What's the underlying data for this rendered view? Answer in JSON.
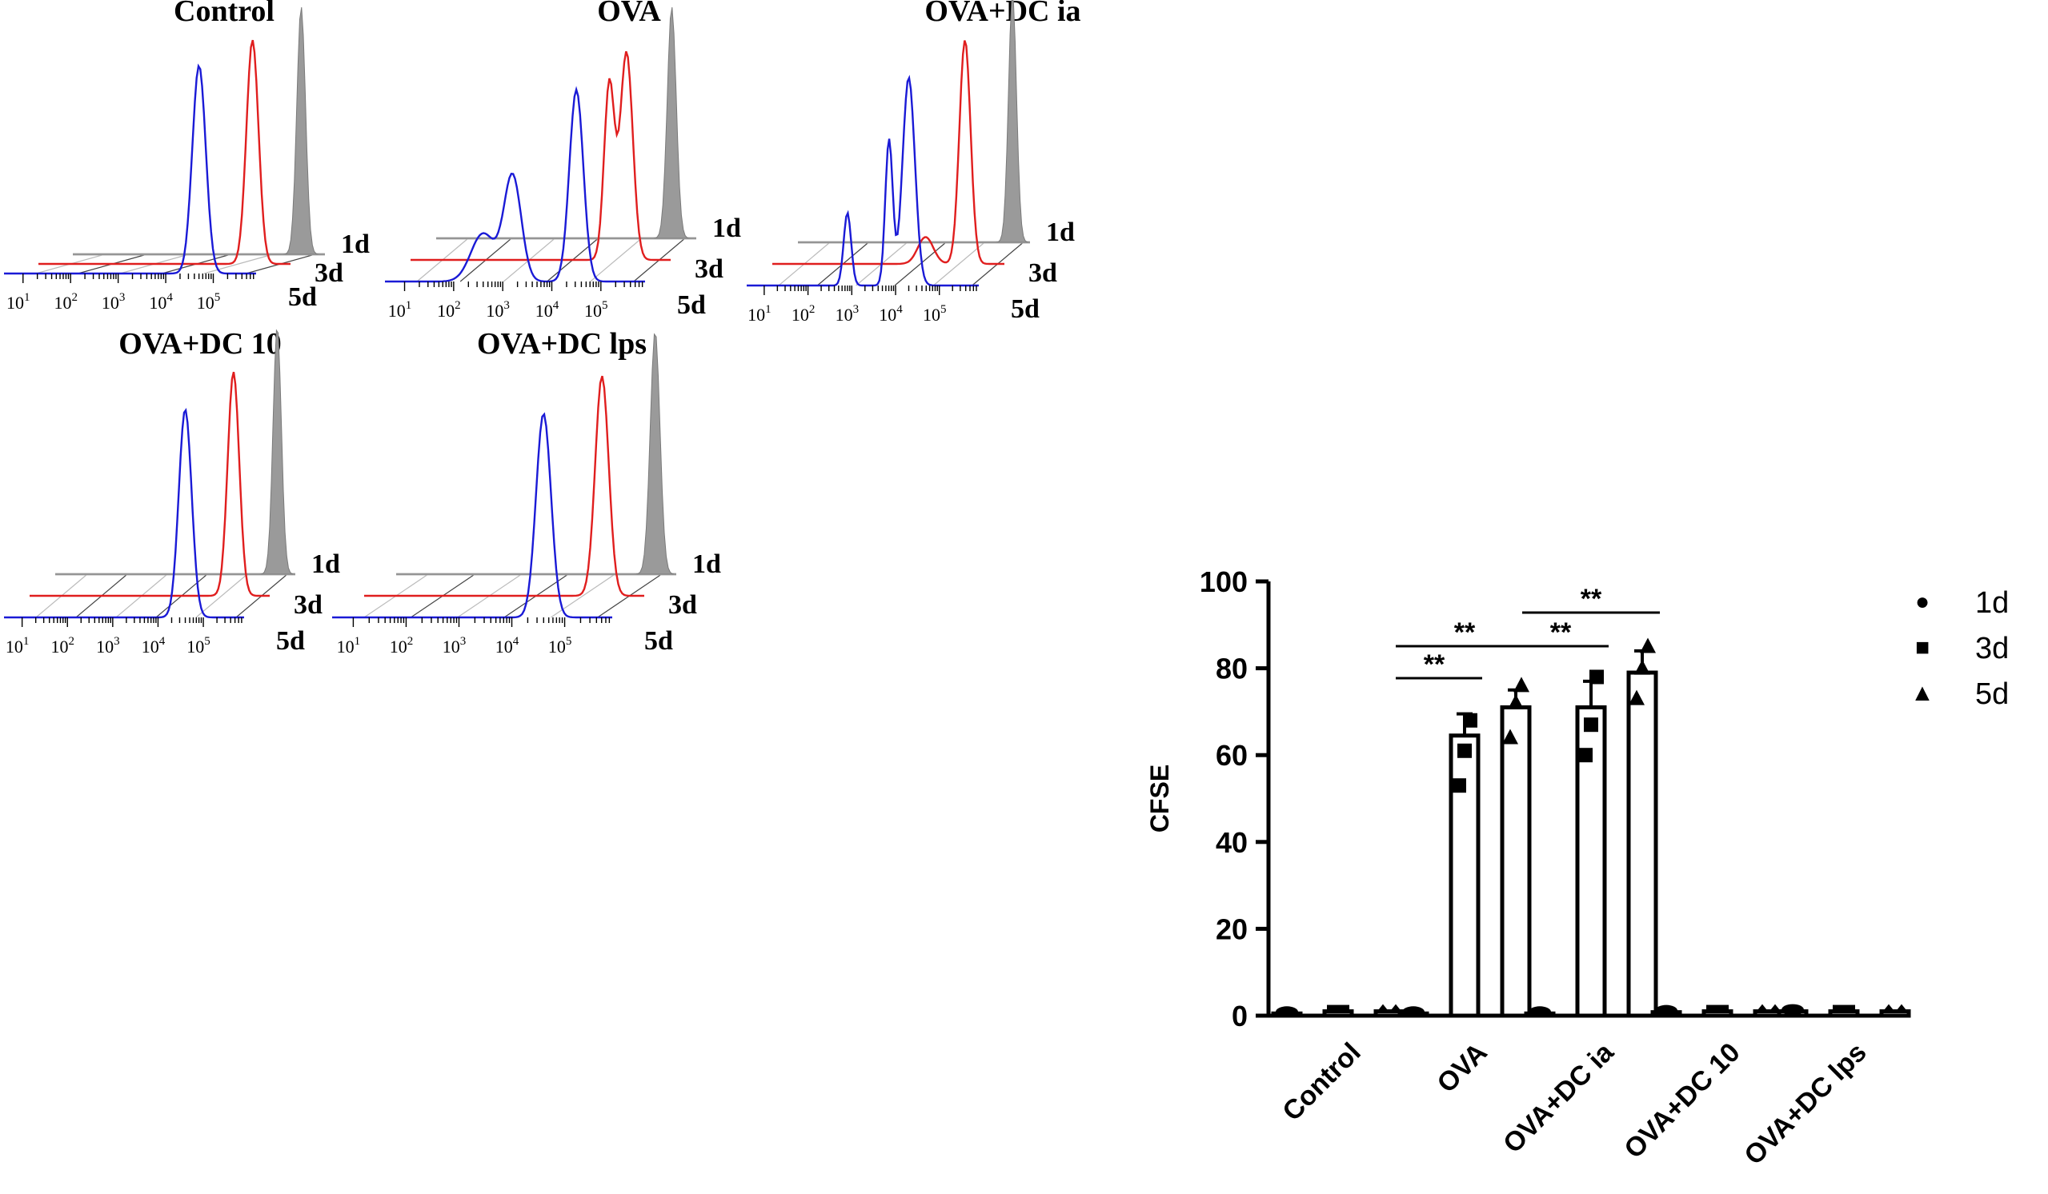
{
  "chart_data": [
    {
      "type": "histogram",
      "title": "Control",
      "day_labels": [
        "1d",
        "3d",
        "5d"
      ],
      "x_tick_labels": [
        {
          "base": "10",
          "exp": "1"
        },
        {
          "base": "10",
          "exp": "2"
        },
        {
          "base": "10",
          "exp": "3"
        },
        {
          "base": "10",
          "exp": "4"
        },
        {
          "base": "10",
          "exp": "5"
        }
      ],
      "peaks": [
        {
          "day": "1d",
          "log10_center": 5.4
        },
        {
          "day": "3d",
          "log10_center": 5.1
        },
        {
          "day": "5d",
          "log10_center": 4.7
        }
      ]
    },
    {
      "type": "histogram",
      "title": "OVA",
      "day_labels": [
        "1d",
        "3d",
        "5d"
      ],
      "x_tick_labels": [
        {
          "base": "10",
          "exp": "1"
        },
        {
          "base": "10",
          "exp": "2"
        },
        {
          "base": "10",
          "exp": "3"
        },
        {
          "base": "10",
          "exp": "4"
        },
        {
          "base": "10",
          "exp": "5"
        }
      ],
      "peaks": [
        {
          "day": "1d",
          "log10_center": 5.4
        },
        {
          "day": "3d",
          "log10_center": 5.0
        },
        {
          "day": "5d",
          "log10_center": 4.5
        }
      ]
    },
    {
      "type": "histogram",
      "title": "OVA+DC ia",
      "day_labels": [
        "1d",
        "3d",
        "5d"
      ],
      "x_tick_labels": [
        {
          "base": "10",
          "exp": "1"
        },
        {
          "base": "10",
          "exp": "2"
        },
        {
          "base": "10",
          "exp": "3"
        },
        {
          "base": "10",
          "exp": "4"
        },
        {
          "base": "10",
          "exp": "5"
        }
      ],
      "peaks": [
        {
          "day": "1d",
          "log10_center": 5.5
        },
        {
          "day": "3d",
          "log10_center": 5.0
        },
        {
          "day": "5d",
          "log10_center": 4.3
        }
      ]
    },
    {
      "type": "histogram",
      "title": "OVA+DC 10",
      "day_labels": [
        "1d",
        "3d",
        "5d"
      ],
      "x_tick_labels": [
        {
          "base": "10",
          "exp": "1"
        },
        {
          "base": "10",
          "exp": "2"
        },
        {
          "base": "10",
          "exp": "3"
        },
        {
          "base": "10",
          "exp": "4"
        },
        {
          "base": "10",
          "exp": "5"
        }
      ],
      "peaks": [
        {
          "day": "1d",
          "log10_center": 5.5
        },
        {
          "day": "3d",
          "log10_center": 5.1
        },
        {
          "day": "5d",
          "log10_center": 4.6
        }
      ]
    },
    {
      "type": "histogram",
      "title": "OVA+DC lps",
      "day_labels": [
        "1d",
        "3d",
        "5d"
      ],
      "x_tick_labels": [
        {
          "base": "10",
          "exp": "1"
        },
        {
          "base": "10",
          "exp": "2"
        },
        {
          "base": "10",
          "exp": "3"
        },
        {
          "base": "10",
          "exp": "4"
        },
        {
          "base": "10",
          "exp": "5"
        }
      ],
      "peaks": [
        {
          "day": "1d",
          "log10_center": 5.5
        },
        {
          "day": "3d",
          "log10_center": 5.1
        },
        {
          "day": "5d",
          "log10_center": 4.6
        }
      ]
    },
    {
      "type": "bar",
      "title": "",
      "ylabel": "CFSE",
      "ylim": [
        0,
        100
      ],
      "y_ticks": [
        0,
        20,
        40,
        60,
        80,
        100
      ],
      "categories": [
        "Control",
        "OVA",
        "OVA+DC ia",
        "OVA+DC 10",
        "OVA+DC lps"
      ],
      "series": [
        {
          "name": "1d",
          "marker": "●",
          "values": [
            0.5,
            0.5,
            0.5,
            0.8,
            1.0
          ]
        },
        {
          "name": "3d",
          "marker": "■",
          "values": [
            1.0,
            64.5,
            71.0,
            1.0,
            1.0
          ]
        },
        {
          "name": "5d",
          "marker": "▲",
          "values": [
            1.0,
            71.0,
            79.0,
            1.0,
            1.0
          ]
        }
      ],
      "error": {
        "3d": [
          0,
          5,
          6,
          0,
          0
        ],
        "5d": [
          0,
          4,
          5,
          0,
          0
        ]
      },
      "points": {
        "3d": [
          [],
          [
            53,
            61,
            68
          ],
          [
            60,
            67,
            78
          ],
          [],
          []
        ],
        "5d": [
          [],
          [
            64,
            72,
            76
          ],
          [
            73,
            80,
            85
          ],
          [],
          []
        ]
      },
      "significance": [
        {
          "category": "OVA",
          "pair": [
            "1d",
            "3d"
          ],
          "label": "**"
        },
        {
          "category": "OVA",
          "pair": [
            "1d",
            "5d"
          ],
          "label": "**"
        },
        {
          "category": "OVA+DC ia",
          "pair": [
            "1d",
            "3d"
          ],
          "label": "**"
        },
        {
          "category": "OVA+DC ia",
          "pair": [
            "1d",
            "5d"
          ],
          "label": "**"
        }
      ],
      "legend_position": "top-right"
    }
  ],
  "colors": {
    "blue": "#1a1ad6",
    "red": "#e01e1e",
    "gray_fill": "#9a9a9a",
    "axis": "#000000",
    "grid": "#b8b8b8"
  }
}
